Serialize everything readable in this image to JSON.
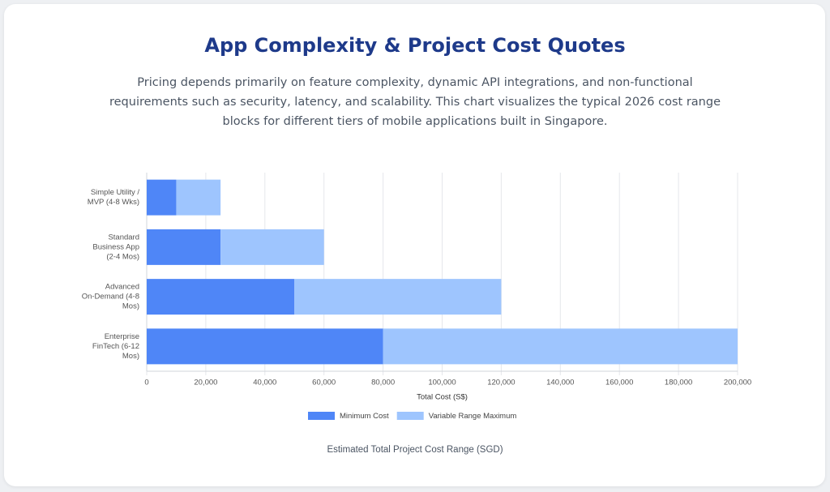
{
  "chart_data": {
    "type": "stacked_hbar",
    "title": "App Complexity & Project Cost Quotes",
    "subtitle": "Pricing depends primarily on feature complexity, dynamic API integrations, and non-functional requirements such as security, latency, and scalability. This chart visualizes the typical 2026 cost range blocks for different tiers of mobile applications built in Singapore.",
    "categories": [
      [
        "Simple Utility /",
        "MVP (4-8 Wks)"
      ],
      [
        "Standard",
        "Business App",
        "(2-4 Mos)"
      ],
      [
        "Advanced",
        "On-Demand (4-8",
        "Mos)"
      ],
      [
        "Enterprise",
        "FinTech (6-12",
        "Mos)"
      ]
    ],
    "series": [
      {
        "name": "Minimum Cost",
        "color": "#4f86f7",
        "values": [
          10000,
          25000,
          50000,
          80000
        ]
      },
      {
        "name": "Variable Range Maximum",
        "color": "#9ec5fe",
        "values": [
          15000,
          35000,
          70000,
          120000
        ]
      }
    ],
    "xlim": [
      0,
      200000
    ],
    "xticks": [
      0,
      {
        "value": 20000,
        "label": "20,000"
      },
      {
        "value": 40000,
        "label": "40,000"
      },
      {
        "value": 60000,
        "label": "60,000"
      },
      {
        "value": 80000,
        "label": "80,000"
      },
      {
        "value": 100000,
        "label": "100,000"
      },
      {
        "value": 120000,
        "label": "120,000"
      },
      {
        "value": 140000,
        "label": "140,000"
      },
      {
        "value": 160000,
        "label": "160,000"
      },
      {
        "value": 180000,
        "label": "180,000"
      },
      {
        "value": 200000,
        "label": "200,000"
      }
    ],
    "x_label": "Total Cost (S$)",
    "caption": "Estimated Total Project Cost Range (SGD)",
    "grid": true,
    "legend": "bottom"
  }
}
